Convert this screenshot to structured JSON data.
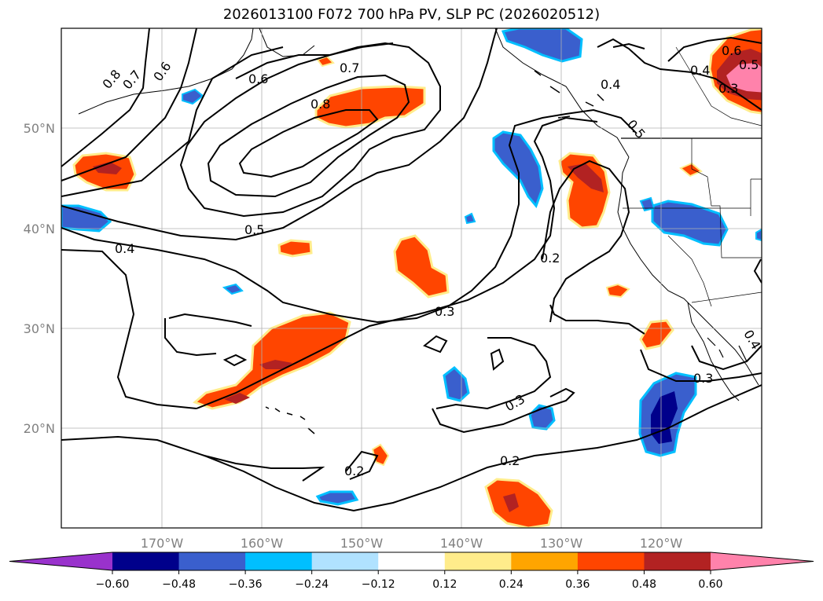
{
  "title": "2026013100 F072 700 hPa PV, SLP PC (2026020512)",
  "map": {
    "lon_ticks": [
      "170°W",
      "160°W",
      "150°W",
      "140°W",
      "130°W",
      "120°W"
    ],
    "lat_ticks": [
      "50°N",
      "40°N",
      "30°N",
      "20°N"
    ],
    "contour_labels": [
      "0.8",
      "0.7",
      "0.6",
      "0.6",
      "0.7",
      "0.8",
      "0.5",
      "0.4",
      "0.3",
      "0.2",
      "0.3",
      "0.2",
      "0.2",
      "0.3",
      "0.5",
      "0.4",
      "0.4",
      "0.6",
      "0.5",
      "0.3",
      "0.4"
    ]
  },
  "colorbar": {
    "tick_labels": [
      "−0.60",
      "−0.48",
      "−0.36",
      "−0.24",
      "−0.12",
      "0.12",
      "0.24",
      "0.36",
      "0.48",
      "0.60"
    ],
    "colors": [
      "#9932cc",
      "#00008b",
      "#3a5fcd",
      "#00bfff",
      "#b0e2ff",
      "#ffffff",
      "#ffec8b",
      "#ffa500",
      "#ff4500",
      "#b22222",
      "#ff82ab"
    ]
  }
}
